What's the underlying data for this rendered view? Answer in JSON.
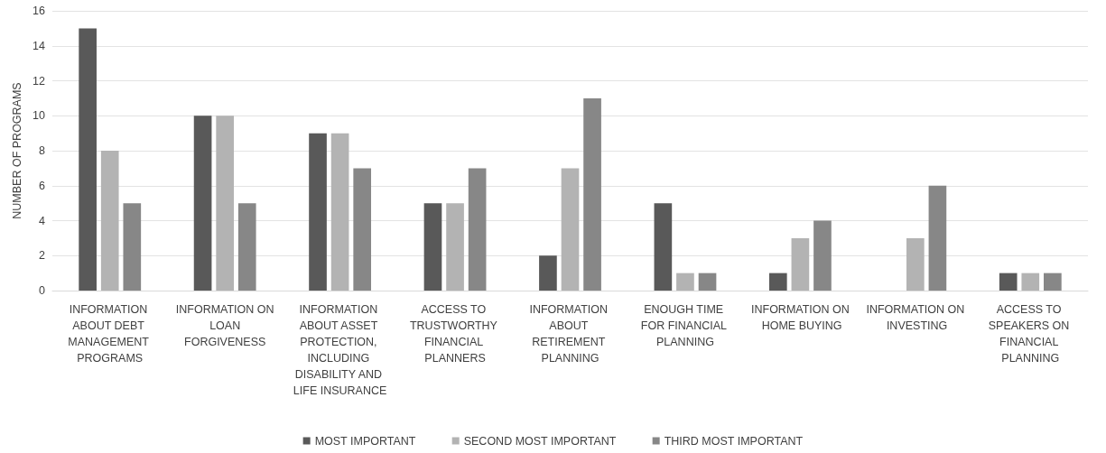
{
  "chart_data": {
    "type": "bar",
    "ylabel": "NUMBER OF PROGRAMS",
    "categories": [
      "INFORMATION ABOUT DEBT MANAGEMENT PROGRAMS",
      "INFORMATION ON LOAN FORGIVENESS",
      "INFORMATION ABOUT ASSET PROTECTION, INCLUDING DISABILITY AND LIFE INSURANCE",
      "ACCESS TO TRUSTWORTHY FINANCIAL PLANNERS",
      "INFORMATION ABOUT RETIREMENT PLANNING",
      "ENOUGH TIME FOR FINANCIAL PLANNING",
      "INFORMATION ON HOME BUYING",
      "INFORMATION ON INVESTING",
      "ACCESS TO SPEAKERS ON FINANCIAL PLANNING"
    ],
    "series": [
      {
        "name": "MOST IMPORTANT",
        "color": "#595959",
        "values": [
          15,
          10,
          9,
          5,
          2,
          5,
          1,
          0,
          1
        ]
      },
      {
        "name": "SECOND MOST IMPORTANT",
        "color": "#b3b3b3",
        "values": [
          8,
          10,
          9,
          5,
          7,
          1,
          3,
          3,
          1
        ]
      },
      {
        "name": "THIRD MOST IMPORTANT",
        "color": "#878787",
        "values": [
          5,
          5,
          7,
          7,
          11,
          1,
          4,
          6,
          1
        ]
      }
    ],
    "ylim": [
      0,
      16
    ],
    "yticks": [
      0,
      2,
      4,
      6,
      8,
      10,
      12,
      14,
      16
    ],
    "grid": "y",
    "legend": "bottom"
  }
}
